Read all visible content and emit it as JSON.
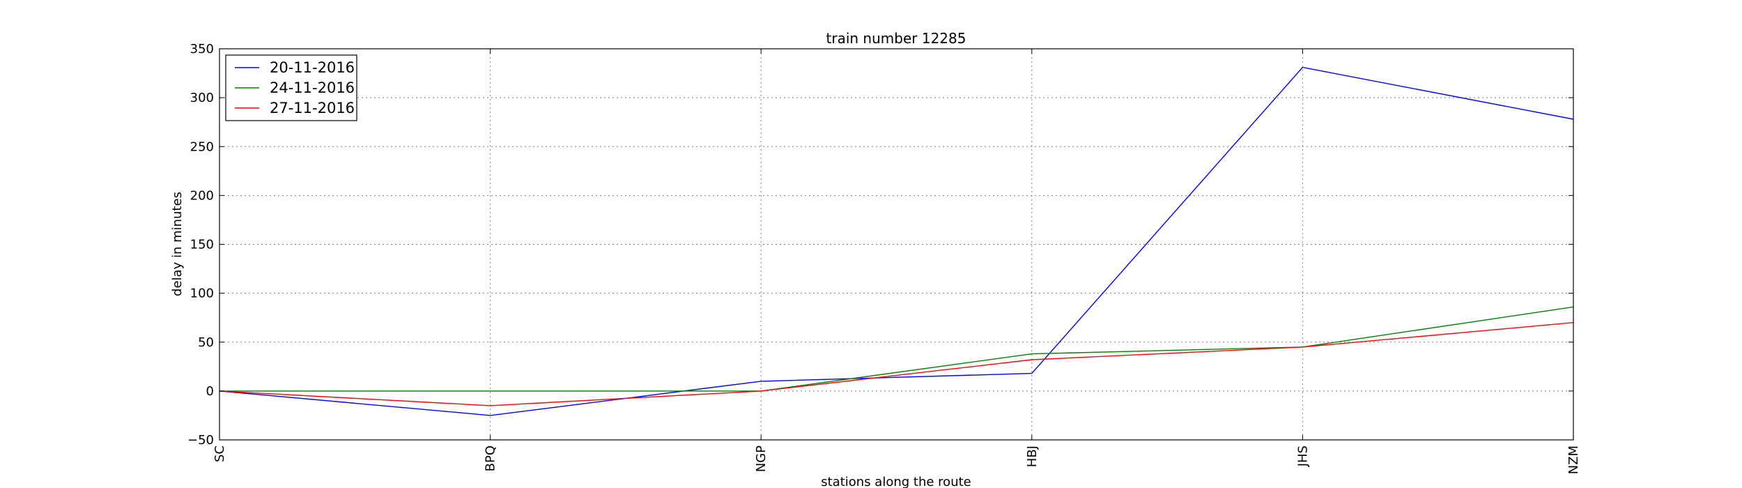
{
  "chart_data": {
    "type": "line",
    "title": "train number 12285",
    "xlabel": "stations along the route",
    "ylabel": "delay in minutes",
    "categories": [
      "SC",
      "BPQ",
      "NGP",
      "HBJ",
      "JHS",
      "NZM"
    ],
    "ylim": [
      -50,
      350
    ],
    "yticks": [
      -50,
      0,
      50,
      100,
      150,
      200,
      250,
      300,
      350
    ],
    "grid": true,
    "legend_position": "top-left",
    "series": [
      {
        "name": "20-11-2016",
        "color": "#0000ff",
        "values": [
          0,
          -25,
          10,
          18,
          331,
          278
        ]
      },
      {
        "name": "24-11-2016",
        "color": "#008000",
        "values": [
          0,
          0,
          0,
          38,
          45,
          86
        ]
      },
      {
        "name": "27-11-2016",
        "color": "#ff0000",
        "values": [
          0,
          -15,
          0,
          32,
          45,
          70
        ]
      }
    ]
  }
}
